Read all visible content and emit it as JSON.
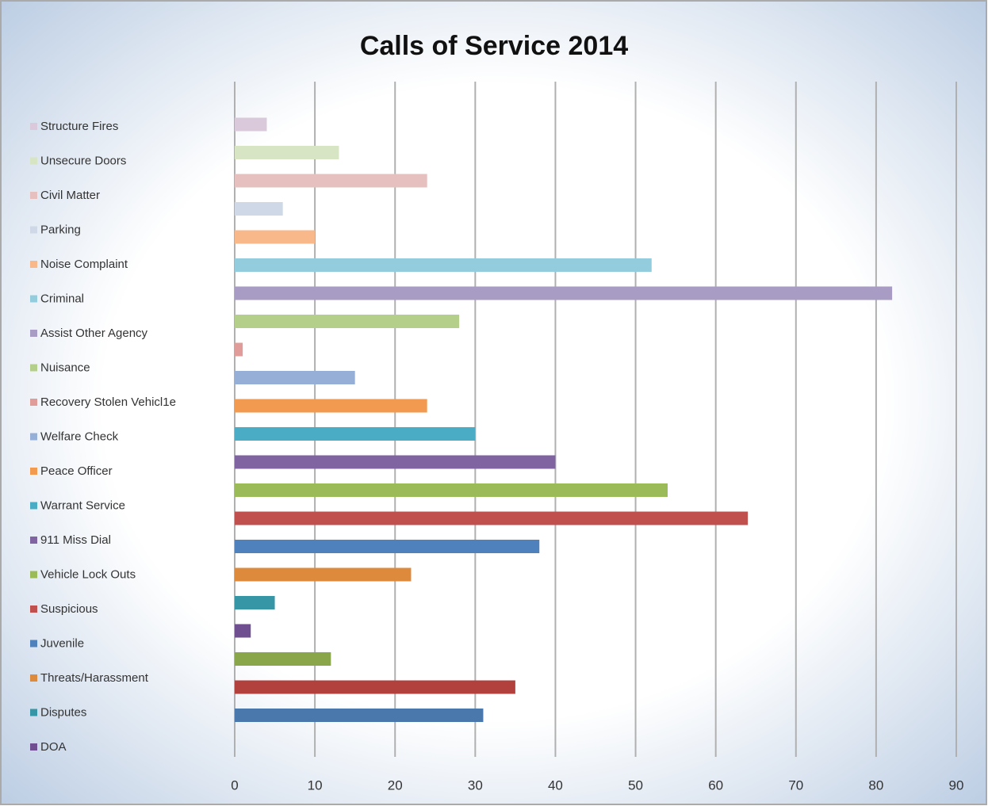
{
  "chart_data": {
    "type": "bar",
    "orientation": "horizontal",
    "title": "Calls of Service 2014",
    "categories": [
      "Structure Fires",
      "Unsecure Doors",
      "Civil Matter",
      "Parking",
      "Noise Complaint",
      "Criminal",
      "Assist Other Agency",
      "Nuisance",
      "Recovery Stolen Vehicl1e",
      "Welfare Check",
      "Peace Officer",
      "Warrant Service",
      "911 Miss Dial",
      "Vehicle Lock Outs",
      "Suspicious",
      "Juvenile",
      "Threats/Harassment",
      "Disputes",
      "DOA",
      null,
      null,
      null
    ],
    "values": [
      4,
      13,
      24,
      6,
      10,
      52,
      82,
      28,
      1,
      15,
      24,
      30,
      40,
      54,
      64,
      38,
      22,
      5,
      2,
      12,
      35,
      31
    ],
    "colors": [
      "#d9c9db",
      "#d8e5c4",
      "#e6c0bf",
      "#cfd8e6",
      "#f9b88a",
      "#93cddd",
      "#a89bc4",
      "#b3cf8a",
      "#e09c98",
      "#95afd6",
      "#f29a4f",
      "#4bacc6",
      "#8064a2",
      "#9bbb59",
      "#c0504d",
      "#4f81bd",
      "#dd8a3c",
      "#3796a6",
      "#6f4f8f",
      "#8aa64b",
      "#b2403d",
      "#4a78ac"
    ],
    "xlim": [
      0,
      90
    ],
    "xticks": [
      0,
      10,
      20,
      30,
      40,
      50,
      60,
      70,
      80,
      90
    ],
    "grid": true,
    "legend": "left"
  }
}
